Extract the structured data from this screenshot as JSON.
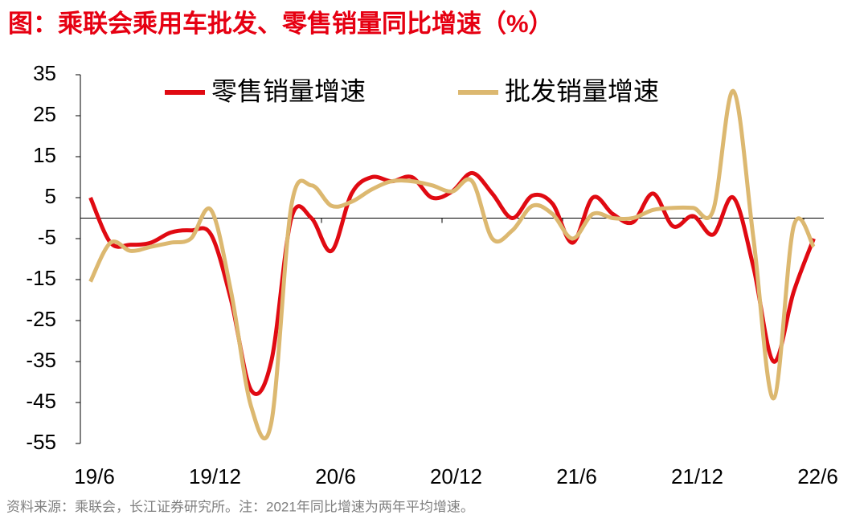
{
  "chart_data": {
    "type": "line",
    "title": "图：乘联会乘用车批发、零售销量同比增速（%）",
    "source": "资料来源：乘联会，长江证券研究所。注：2021年同比增速为两年平均增速。",
    "categories": [
      "19/6",
      null,
      null,
      null,
      null,
      null,
      "19/12",
      null,
      null,
      null,
      null,
      null,
      "20/6",
      null,
      null,
      null,
      null,
      null,
      "20/12",
      null,
      null,
      null,
      null,
      null,
      "21/6",
      null,
      null,
      null,
      null,
      null,
      "21/12",
      null,
      null,
      null,
      null,
      null,
      "22/6"
    ],
    "series": [
      {
        "name": "零售销量增速",
        "color": "#e00a12",
        "values": [
          5,
          -6,
          -6.5,
          -6,
          -3.5,
          -3,
          -4,
          -20,
          -42,
          -35,
          0,
          0,
          -8,
          6,
          10,
          9,
          10,
          5,
          6.5,
          11,
          6,
          0,
          5.5,
          3.5,
          -6,
          5,
          1,
          -1,
          6,
          -2,
          0.5,
          -4,
          5,
          -12,
          -35,
          -18,
          -5
        ]
      },
      {
        "name": "批发销量增速",
        "color": "#dcb870",
        "values": [
          -15.5,
          -6,
          -8,
          -7,
          -6,
          -5,
          2,
          -18,
          -46,
          -50,
          3,
          8,
          3,
          4,
          7,
          9,
          9,
          8,
          6.5,
          9,
          -5,
          -3,
          3,
          1,
          -5,
          1,
          0,
          0,
          2,
          2.5,
          2.5,
          2,
          31,
          -5,
          -44,
          -2,
          -7
        ]
      }
    ],
    "ylim": [
      -55,
      35
    ],
    "yticks": [
      35,
      25,
      15,
      5,
      -5,
      -15,
      -25,
      -35,
      -45,
      -55
    ]
  }
}
